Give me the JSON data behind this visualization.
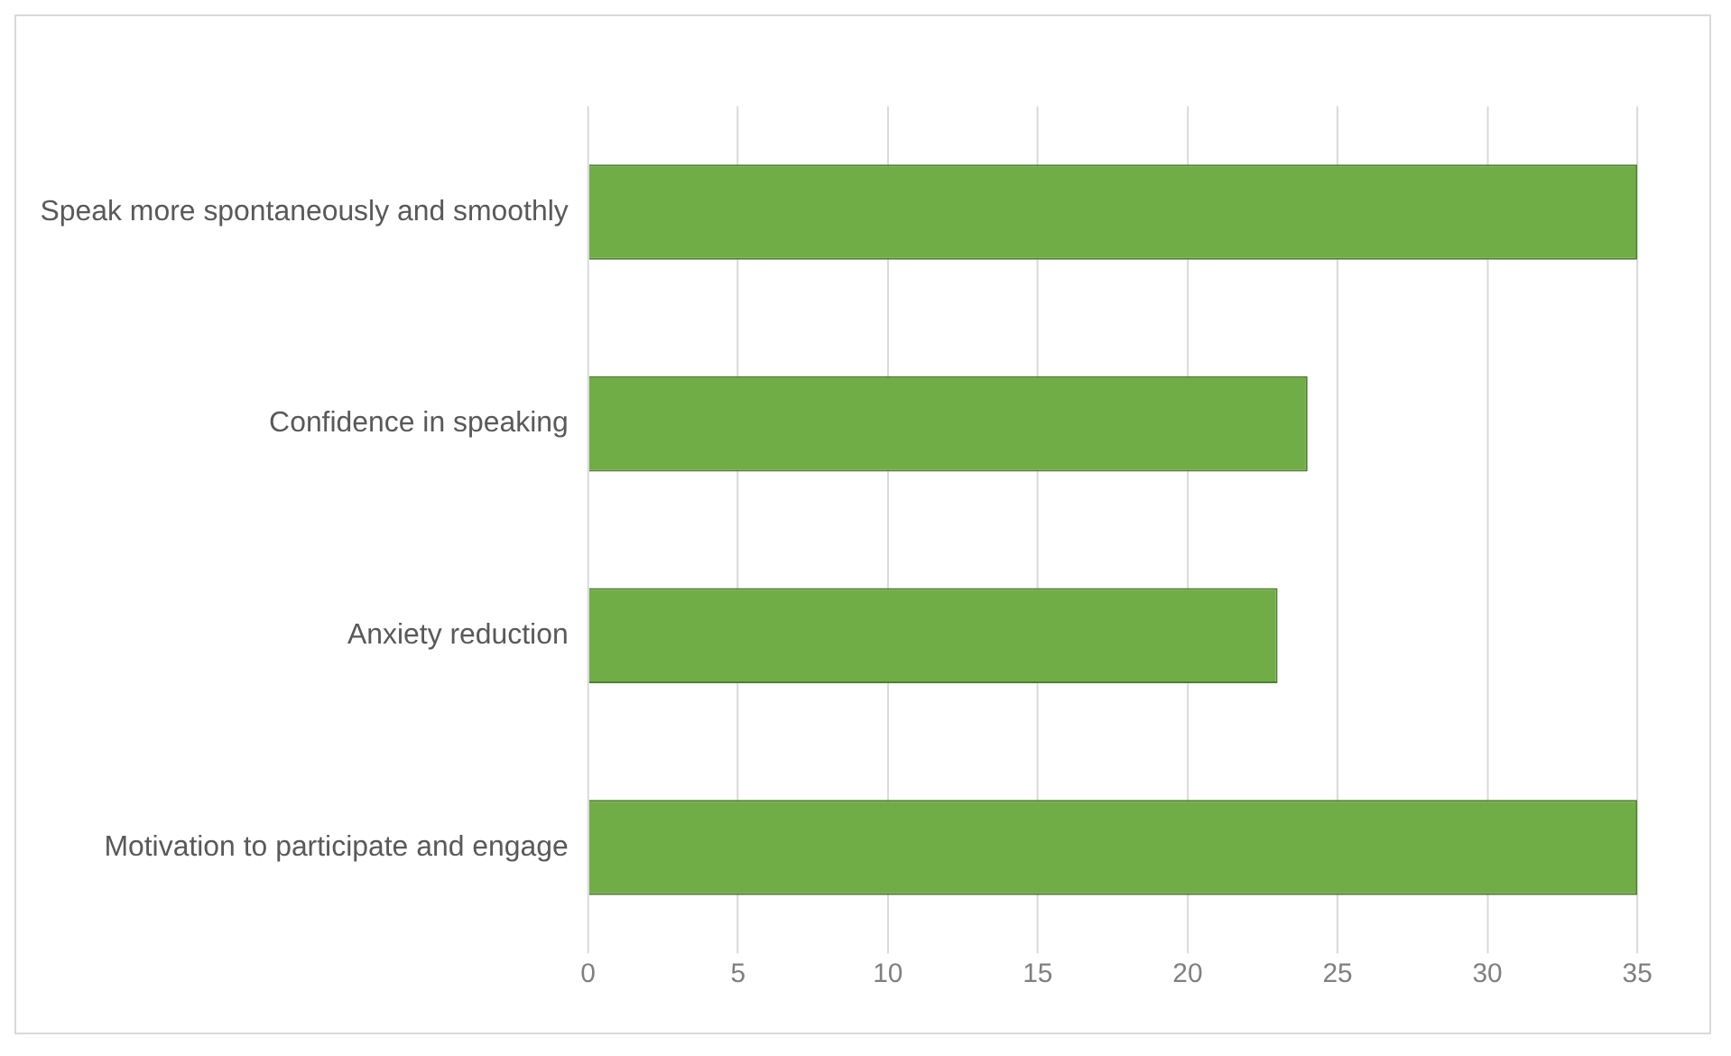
{
  "chart_data": {
    "type": "bar",
    "orientation": "horizontal",
    "categories": [
      "Speak more spontaneously and smoothly",
      "Confidence in speaking",
      "Anxiety reduction",
      "Motivation to participate and engage"
    ],
    "values": [
      35,
      24,
      23,
      35
    ],
    "color": "#70ad47",
    "xlim": [
      0,
      35
    ],
    "xticks": [
      0,
      5,
      10,
      15,
      20,
      25,
      30,
      35
    ],
    "grid": "x"
  }
}
